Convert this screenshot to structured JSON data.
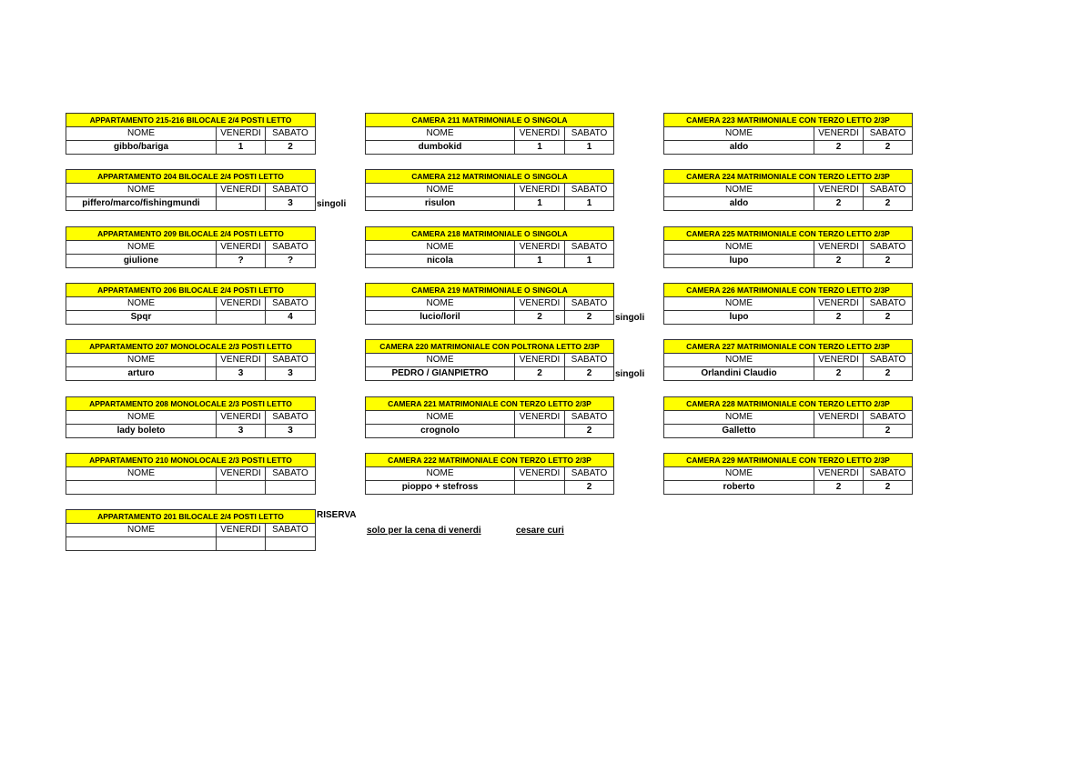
{
  "columns_header": {
    "nome": "NOME",
    "venerdi": "VENERDI",
    "sabato": "SABATO"
  },
  "colors": {
    "title_background": "#ffff00",
    "border": "#333333"
  },
  "tables": [
    {
      "title": "APPARTAMENTO 215-216 BILOCALE 2/4 POSTI LETTO",
      "nome": "gibbo/bariga",
      "venerdi": "1",
      "sabato": "2"
    },
    {
      "title": "APPARTAMENTO 204 BILOCALE 2/4 POSTI LETTO",
      "nome": "piffero/marco/fishingmundi",
      "venerdi": "",
      "sabato": "3"
    },
    {
      "title": "APPARTAMENTO 209 BILOCALE 2/4 POSTI LETTO",
      "nome": "giulione",
      "venerdi": "?",
      "sabato": "?"
    },
    {
      "title": "APPARTAMENTO 206 BILOCALE 2/4 POSTI LETTO",
      "nome": "Spqr",
      "venerdi": "",
      "sabato": "4"
    },
    {
      "title": "APPARTAMENTO 207 MONOLOCALE 2/3 POSTI LETTO",
      "nome": "arturo",
      "venerdi": "3",
      "sabato": "3"
    },
    {
      "title": "APPARTAMENTO 208 MONOLOCALE 2/3 POSTI LETTO",
      "nome": "lady boleto",
      "venerdi": "3",
      "sabato": "3"
    },
    {
      "title": "APPARTAMENTO 210 MONOLOCALE 2/3 POSTI LETTO",
      "nome": "",
      "venerdi": "",
      "sabato": ""
    },
    {
      "title": "APPARTAMENTO 201 BILOCALE 2/4 POSTI LETTO",
      "nome": "",
      "venerdi": "",
      "sabato": ""
    },
    {
      "title": "CAMERA 211 MATRIMONIALE O SINGOLA",
      "nome": "dumbokid",
      "venerdi": "1",
      "sabato": "1"
    },
    {
      "title": "CAMERA 212 MATRIMONIALE O SINGOLA",
      "nome": "risulon",
      "venerdi": "1",
      "sabato": "1"
    },
    {
      "title": "CAMERA 218 MATRIMONIALE O SINGOLA",
      "nome": "nicola",
      "venerdi": "1",
      "sabato": "1"
    },
    {
      "title": "CAMERA 219 MATRIMONIALE O SINGOLA",
      "nome": "lucio/loril",
      "venerdi": "2",
      "sabato": "2"
    },
    {
      "title": "CAMERA 220 MATRIMONIALE CON POLTRONA LETTO 2/3P",
      "nome": "PEDRO / GIANPIETRO",
      "venerdi": "2",
      "sabato": "2"
    },
    {
      "title": "CAMERA 221 MATRIMONIALE CON TERZO LETTO 2/3P",
      "nome": "crognolo",
      "venerdi": "",
      "sabato": "2"
    },
    {
      "title": "CAMERA 222 MATRIMONIALE CON TERZO LETTO 2/3P",
      "nome": "pioppo + stefross",
      "venerdi": "",
      "sabato": "2"
    },
    {
      "title": "CAMERA 223 MATRIMONIALE CON TERZO LETTO 2/3P",
      "nome": "aldo",
      "venerdi": "2",
      "sabato": "2"
    },
    {
      "title": "CAMERA 224 MATRIMONIALE CON TERZO LETTO 2/3P",
      "nome": "aldo",
      "venerdi": "2",
      "sabato": "2"
    },
    {
      "title": "CAMERA 225 MATRIMONIALE CON TERZO LETTO 2/3P",
      "nome": "lupo",
      "venerdi": "2",
      "sabato": "2"
    },
    {
      "title": "CAMERA 226 MATRIMONIALE CON TERZO LETTO 2/3P",
      "nome": "lupo",
      "venerdi": "2",
      "sabato": "2"
    },
    {
      "title": "CAMERA 227 MATRIMONIALE CON TERZO LETTO 2/3P",
      "nome": "Orlandini Claudio",
      "venerdi": "2",
      "sabato": "2"
    },
    {
      "title": "CAMERA 228 MATRIMONIALE CON TERZO LETTO 2/3P",
      "nome": "Galletto",
      "venerdi": "",
      "sabato": "2"
    },
    {
      "title": "CAMERA 229 MATRIMONIALE CON TERZO LETTO 2/3P",
      "nome": "roberto",
      "venerdi": "2",
      "sabato": "2"
    }
  ],
  "notes": {
    "singoli_204": "singoli",
    "singoli_219": "singoli",
    "singoli_220": "singoli",
    "riserva": "RISERVA",
    "solo_cena": "solo per la cena di venerdi",
    "cesare": "cesare curi"
  }
}
